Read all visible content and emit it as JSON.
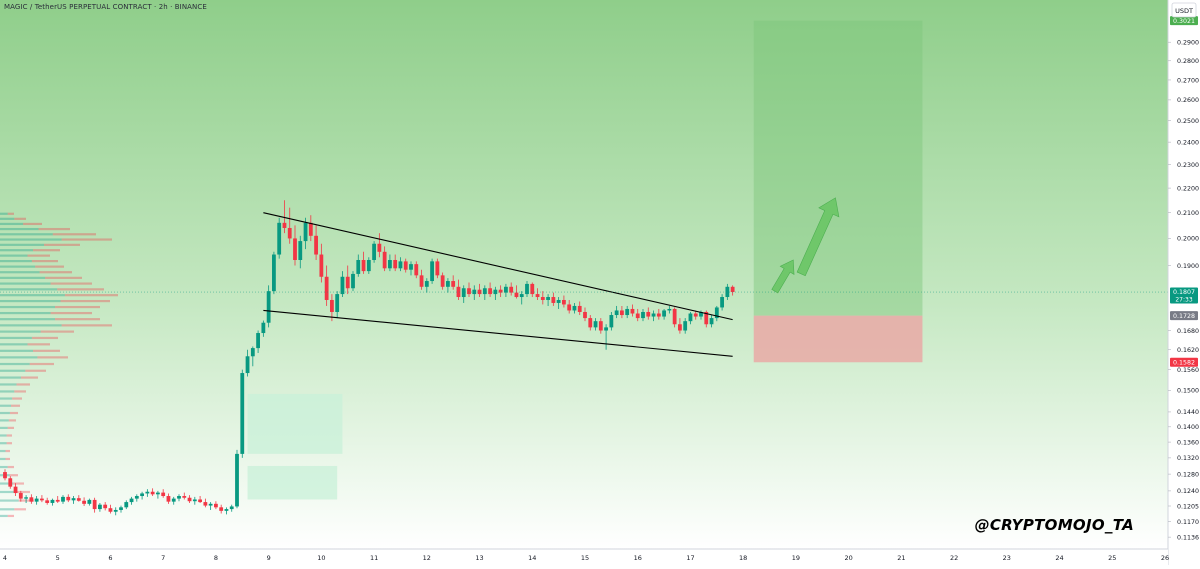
{
  "header": {
    "title": "MAGIC / TetherUS PERPETUAL CONTRACT · 2h · BINANCE"
  },
  "watermark": "@CRYPTOMOJO_TA",
  "colors": {
    "up": "#089981",
    "down": "#f23645",
    "background_top": "#8fce8a",
    "background_bottom": "#ffffff",
    "target_zone": "#7cc67a",
    "stop_zone": "#e9a9a6",
    "trend_line": "#000000",
    "arrow": "#6fc76a",
    "price_label_current": "#089981",
    "price_label_target": "#4caf50",
    "price_label_stop": "#f23645",
    "price_label_entry": "#787b86"
  },
  "chart_data": {
    "type": "candlestick",
    "title": "MAGIC / TetherUS PERPETUAL CONTRACT · 2h · BINANCE",
    "currency": "USDT",
    "xlim": [
      4,
      26
    ],
    "ylim": [
      0.1115,
      0.31
    ],
    "x_ticks": [
      "4",
      "5",
      "6",
      "7",
      "8",
      "9",
      "10",
      "11",
      "12",
      "13",
      "14",
      "15",
      "16",
      "17",
      "18",
      "19",
      "20",
      "21",
      "22",
      "23",
      "24",
      "25",
      "26"
    ],
    "y_ticks": [
      "0.2900",
      "0.2800",
      "0.2700",
      "0.2600",
      "0.2500",
      "0.2400",
      "0.2300",
      "0.2200",
      "0.2100",
      "0.2000",
      "0.1900",
      "0.1680",
      "0.1620",
      "0.1560",
      "0.1500",
      "0.1440",
      "0.1400",
      "0.1360",
      "0.1320",
      "0.1280",
      "0.1240",
      "0.1205",
      "0.1170",
      "0.1136"
    ],
    "price_labels": [
      {
        "name": "target",
        "value": 0.3021,
        "text": "0.3021"
      },
      {
        "name": "current",
        "value": 0.1807,
        "text": "0.1807",
        "countdown": "27:33"
      },
      {
        "name": "entry",
        "value": 0.1728,
        "text": "0.1728"
      },
      {
        "name": "stop",
        "value": 0.1582,
        "text": "0.1582"
      }
    ],
    "candles": [
      [
        4.0,
        0.1285,
        0.1292,
        0.1265,
        0.127
      ],
      [
        4.1,
        0.127,
        0.1275,
        0.1245,
        0.125
      ],
      [
        4.2,
        0.125,
        0.1258,
        0.1228,
        0.1235
      ],
      [
        4.3,
        0.1235,
        0.124,
        0.1215,
        0.1222
      ],
      [
        4.4,
        0.1222,
        0.123,
        0.1212,
        0.1225
      ],
      [
        4.5,
        0.1225,
        0.1232,
        0.121,
        0.1215
      ],
      [
        4.6,
        0.1215,
        0.1228,
        0.1208,
        0.1222
      ],
      [
        4.7,
        0.1222,
        0.123,
        0.1214,
        0.1218
      ],
      [
        4.8,
        0.1218,
        0.1224,
        0.1208,
        0.1212
      ],
      [
        4.9,
        0.1212,
        0.1222,
        0.1206,
        0.1219
      ],
      [
        5.0,
        0.1219,
        0.1228,
        0.1212,
        0.1215
      ],
      [
        5.1,
        0.1215,
        0.123,
        0.121,
        0.1226
      ],
      [
        5.2,
        0.1226,
        0.1232,
        0.1214,
        0.1218
      ],
      [
        5.3,
        0.1218,
        0.1228,
        0.121,
        0.1223
      ],
      [
        5.4,
        0.1223,
        0.123,
        0.1215,
        0.1217
      ],
      [
        5.5,
        0.1217,
        0.1225,
        0.1205,
        0.121
      ],
      [
        5.6,
        0.121,
        0.1222,
        0.1206,
        0.1219
      ],
      [
        5.7,
        0.1219,
        0.1224,
        0.119,
        0.1198
      ],
      [
        5.8,
        0.1198,
        0.1212,
        0.1192,
        0.1208
      ],
      [
        5.9,
        0.1208,
        0.1214,
        0.1195,
        0.12
      ],
      [
        6.0,
        0.12,
        0.1208,
        0.1188,
        0.1192
      ],
      [
        6.1,
        0.1192,
        0.1202,
        0.1184,
        0.1196
      ],
      [
        6.2,
        0.1196,
        0.1206,
        0.119,
        0.1202
      ],
      [
        6.3,
        0.1202,
        0.1218,
        0.1198,
        0.1214
      ],
      [
        6.4,
        0.1214,
        0.1226,
        0.1208,
        0.1222
      ],
      [
        6.5,
        0.1222,
        0.1232,
        0.1215,
        0.1228
      ],
      [
        6.6,
        0.1228,
        0.1238,
        0.122,
        0.1234
      ],
      [
        6.7,
        0.1234,
        0.1244,
        0.1226,
        0.1238
      ],
      [
        6.8,
        0.1238,
        0.1246,
        0.1228,
        0.1232
      ],
      [
        6.9,
        0.1232,
        0.124,
        0.1222,
        0.1236
      ],
      [
        7.0,
        0.1236,
        0.1244,
        0.1224,
        0.1228
      ],
      [
        7.1,
        0.1228,
        0.1234,
        0.121,
        0.1215
      ],
      [
        7.2,
        0.1215,
        0.1226,
        0.1208,
        0.1222
      ],
      [
        7.3,
        0.1222,
        0.1232,
        0.1216,
        0.1228
      ],
      [
        7.4,
        0.1228,
        0.1236,
        0.122,
        0.1224
      ],
      [
        7.5,
        0.1224,
        0.123,
        0.1212,
        0.1216
      ],
      [
        7.6,
        0.1216,
        0.1226,
        0.1208,
        0.122
      ],
      [
        7.7,
        0.122,
        0.1228,
        0.1212,
        0.1214
      ],
      [
        7.8,
        0.1214,
        0.1222,
        0.1202,
        0.1206
      ],
      [
        7.9,
        0.1206,
        0.1214,
        0.1196,
        0.121
      ],
      [
        8.0,
        0.121,
        0.1216,
        0.1198,
        0.1202
      ],
      [
        8.1,
        0.1202,
        0.1208,
        0.1188,
        0.1194
      ],
      [
        8.2,
        0.1194,
        0.1202,
        0.1186,
        0.1198
      ],
      [
        8.3,
        0.1198,
        0.1208,
        0.1192,
        0.1204
      ],
      [
        8.4,
        0.1204,
        0.134,
        0.12,
        0.133
      ],
      [
        8.5,
        0.133,
        0.156,
        0.132,
        0.155
      ],
      [
        8.6,
        0.155,
        0.162,
        0.154,
        0.16
      ],
      [
        8.7,
        0.16,
        0.163,
        0.157,
        0.1625
      ],
      [
        8.8,
        0.1625,
        0.168,
        0.161,
        0.1672
      ],
      [
        8.9,
        0.1672,
        0.1712,
        0.166,
        0.1705
      ],
      [
        9.0,
        0.1705,
        0.183,
        0.169,
        0.181
      ],
      [
        9.1,
        0.181,
        0.195,
        0.18,
        0.194
      ],
      [
        9.2,
        0.194,
        0.208,
        0.1925,
        0.206
      ],
      [
        9.3,
        0.206,
        0.215,
        0.202,
        0.204
      ],
      [
        9.4,
        0.204,
        0.212,
        0.198,
        0.2
      ],
      [
        9.5,
        0.2,
        0.205,
        0.19,
        0.192
      ],
      [
        9.6,
        0.192,
        0.201,
        0.189,
        0.199
      ],
      [
        9.7,
        0.199,
        0.208,
        0.196,
        0.206
      ],
      [
        9.8,
        0.206,
        0.209,
        0.199,
        0.201
      ],
      [
        9.9,
        0.201,
        0.205,
        0.192,
        0.194
      ],
      [
        10.0,
        0.194,
        0.198,
        0.184,
        0.186
      ],
      [
        10.1,
        0.186,
        0.19,
        0.176,
        0.178
      ],
      [
        10.2,
        0.178,
        0.18,
        0.171,
        0.174
      ],
      [
        10.3,
        0.174,
        0.181,
        0.172,
        0.18
      ],
      [
        10.4,
        0.18,
        0.188,
        0.179,
        0.186
      ],
      [
        10.5,
        0.186,
        0.19,
        0.18,
        0.182
      ],
      [
        10.6,
        0.182,
        0.188,
        0.181,
        0.187
      ],
      [
        10.7,
        0.187,
        0.194,
        0.186,
        0.192
      ],
      [
        10.8,
        0.192,
        0.195,
        0.187,
        0.188
      ],
      [
        10.9,
        0.188,
        0.193,
        0.187,
        0.192
      ],
      [
        11.0,
        0.192,
        0.199,
        0.191,
        0.198
      ],
      [
        11.1,
        0.198,
        0.202,
        0.193,
        0.195
      ],
      [
        11.2,
        0.195,
        0.197,
        0.188,
        0.189
      ],
      [
        11.3,
        0.189,
        0.194,
        0.188,
        0.192
      ],
      [
        11.4,
        0.192,
        0.194,
        0.188,
        0.189
      ],
      [
        11.5,
        0.189,
        0.193,
        0.188,
        0.1915
      ],
      [
        11.6,
        0.1915,
        0.1925,
        0.1875,
        0.1885
      ],
      [
        11.7,
        0.1885,
        0.1915,
        0.1865,
        0.1905
      ],
      [
        11.8,
        0.1905,
        0.1915,
        0.1855,
        0.1865
      ],
      [
        11.9,
        0.1865,
        0.1885,
        0.1815,
        0.1825
      ],
      [
        12.0,
        0.1825,
        0.1855,
        0.1805,
        0.1845
      ],
      [
        12.1,
        0.1845,
        0.1925,
        0.1835,
        0.1915
      ],
      [
        12.2,
        0.1915,
        0.1925,
        0.1855,
        0.1865
      ],
      [
        12.3,
        0.1865,
        0.1875,
        0.1815,
        0.1825
      ],
      [
        12.4,
        0.1825,
        0.1855,
        0.1805,
        0.1845
      ],
      [
        12.5,
        0.1845,
        0.1865,
        0.1815,
        0.1825
      ],
      [
        12.6,
        0.1825,
        0.185,
        0.178,
        0.179
      ],
      [
        12.7,
        0.179,
        0.183,
        0.177,
        0.182
      ],
      [
        12.8,
        0.182,
        0.184,
        0.179,
        0.18
      ],
      [
        12.9,
        0.18,
        0.183,
        0.178,
        0.1815
      ],
      [
        13.0,
        0.1815,
        0.1835,
        0.179,
        0.18
      ],
      [
        13.1,
        0.18,
        0.183,
        0.178,
        0.182
      ],
      [
        13.2,
        0.182,
        0.184,
        0.179,
        0.18
      ],
      [
        13.3,
        0.18,
        0.1825,
        0.178,
        0.1815
      ],
      [
        13.4,
        0.1815,
        0.183,
        0.179,
        0.1805
      ],
      [
        13.5,
        0.1805,
        0.1835,
        0.179,
        0.1825
      ],
      [
        13.6,
        0.1825,
        0.184,
        0.1795,
        0.1805
      ],
      [
        13.7,
        0.1805,
        0.183,
        0.1785,
        0.179
      ],
      [
        13.8,
        0.179,
        0.181,
        0.1765,
        0.18
      ],
      [
        13.9,
        0.18,
        0.1845,
        0.179,
        0.1835
      ],
      [
        14.0,
        0.1835,
        0.184,
        0.179,
        0.18
      ],
      [
        14.1,
        0.18,
        0.182,
        0.178,
        0.179
      ],
      [
        14.2,
        0.179,
        0.181,
        0.1765,
        0.178
      ],
      [
        14.3,
        0.178,
        0.18,
        0.176,
        0.179
      ],
      [
        14.4,
        0.179,
        0.1805,
        0.176,
        0.177
      ],
      [
        14.5,
        0.177,
        0.179,
        0.175,
        0.178
      ],
      [
        14.6,
        0.178,
        0.1795,
        0.1755,
        0.1765
      ],
      [
        14.7,
        0.1765,
        0.178,
        0.1735,
        0.1745
      ],
      [
        14.8,
        0.1745,
        0.177,
        0.1735,
        0.176
      ],
      [
        14.9,
        0.176,
        0.1775,
        0.173,
        0.174
      ],
      [
        15.0,
        0.174,
        0.1755,
        0.171,
        0.172
      ],
      [
        15.1,
        0.172,
        0.173,
        0.168,
        0.169
      ],
      [
        15.2,
        0.169,
        0.172,
        0.168,
        0.171
      ],
      [
        15.3,
        0.171,
        0.172,
        0.167,
        0.168
      ],
      [
        15.4,
        0.168,
        0.17,
        0.162,
        0.169
      ],
      [
        15.5,
        0.169,
        0.174,
        0.168,
        0.173
      ],
      [
        15.6,
        0.173,
        0.176,
        0.172,
        0.1745
      ],
      [
        15.7,
        0.1745,
        0.176,
        0.172,
        0.173
      ],
      [
        15.8,
        0.173,
        0.176,
        0.172,
        0.175
      ],
      [
        15.9,
        0.175,
        0.1765,
        0.1725,
        0.1735
      ],
      [
        16.0,
        0.1735,
        0.175,
        0.171,
        0.172
      ],
      [
        16.1,
        0.172,
        0.175,
        0.171,
        0.174
      ],
      [
        16.2,
        0.174,
        0.1755,
        0.1715,
        0.1725
      ],
      [
        16.3,
        0.1725,
        0.1745,
        0.171,
        0.1735
      ],
      [
        16.4,
        0.1735,
        0.175,
        0.1715,
        0.1725
      ],
      [
        16.5,
        0.1725,
        0.175,
        0.1715,
        0.1745
      ],
      [
        16.6,
        0.1745,
        0.176,
        0.1735,
        0.175
      ],
      [
        16.7,
        0.175,
        0.1755,
        0.169,
        0.17
      ],
      [
        16.8,
        0.17,
        0.172,
        0.167,
        0.168
      ],
      [
        16.9,
        0.168,
        0.172,
        0.167,
        0.171
      ],
      [
        17.0,
        0.171,
        0.174,
        0.17,
        0.1735
      ],
      [
        17.1,
        0.1735,
        0.1745,
        0.1715,
        0.1725
      ],
      [
        17.2,
        0.1725,
        0.1745,
        0.1715,
        0.174
      ],
      [
        17.3,
        0.174,
        0.1745,
        0.169,
        0.17
      ],
      [
        17.4,
        0.17,
        0.173,
        0.169,
        0.172
      ],
      [
        17.5,
        0.172,
        0.176,
        0.171,
        0.1755
      ],
      [
        17.6,
        0.1755,
        0.18,
        0.1745,
        0.179
      ],
      [
        17.7,
        0.179,
        0.1835,
        0.178,
        0.1825
      ],
      [
        17.8,
        0.1825,
        0.183,
        0.1795,
        0.1807
      ]
    ],
    "trendlines": [
      {
        "name": "upper-trendline",
        "x": [
          8.9,
          17.8
        ],
        "y": [
          0.21,
          0.1715
        ]
      },
      {
        "name": "lower-trendline",
        "x": [
          8.9,
          17.8
        ],
        "y": [
          0.1745,
          0.16
        ]
      }
    ],
    "zones": [
      {
        "name": "target-zone",
        "x": [
          18.2,
          21.4
        ],
        "y": [
          0.1728,
          0.3021
        ]
      },
      {
        "name": "stop-zone",
        "x": [
          18.2,
          21.4
        ],
        "y": [
          0.1582,
          0.1728
        ]
      },
      {
        "name": "demand-zone-upper",
        "x": [
          8.6,
          10.4
        ],
        "y": [
          0.133,
          0.149
        ]
      },
      {
        "name": "demand-zone-lower",
        "x": [
          8.6,
          10.3
        ],
        "y": [
          0.122,
          0.13
        ]
      }
    ],
    "arrows": [
      {
        "name": "arrow-small",
        "x": [
          18.6,
          18.95
        ],
        "y": [
          0.181,
          0.192
        ]
      },
      {
        "name": "arrow-large",
        "x": [
          19.1,
          19.75
        ],
        "y": [
          0.187,
          0.216
        ]
      }
    ],
    "grid": false,
    "volume_profile": "left"
  }
}
